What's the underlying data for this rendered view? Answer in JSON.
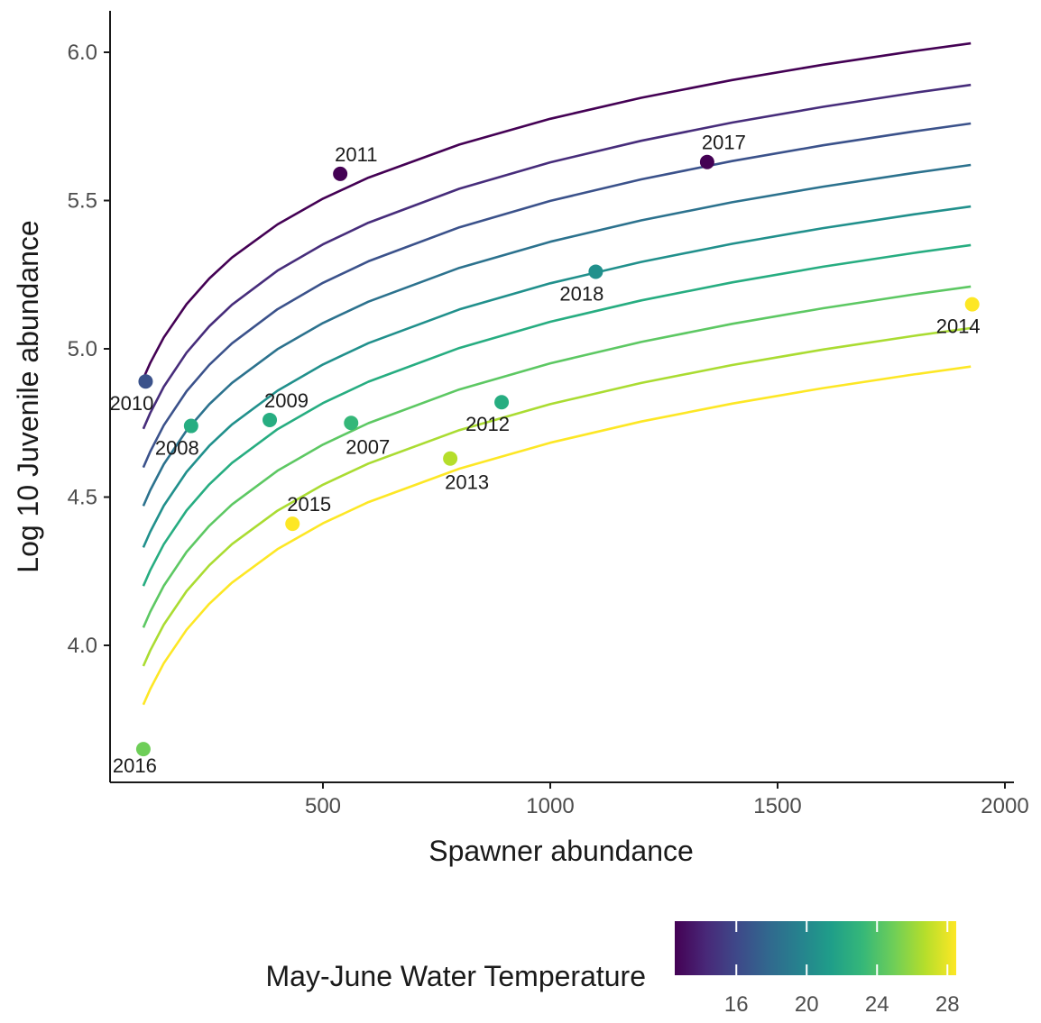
{
  "chart_data": {
    "type": "scatter",
    "title": "",
    "xlabel": "Spawner abundance",
    "ylabel": "Log 10 Juvenile abundance",
    "xlim": [
      20,
      2000
    ],
    "ylim": [
      3.55,
      6.15
    ],
    "x_ticks": [
      500,
      1000,
      1500,
      2000
    ],
    "y_ticks": [
      4.0,
      4.5,
      5.0,
      5.5,
      6.0
    ],
    "x_tick_labels": [
      "500",
      "1000",
      "1500",
      "2000"
    ],
    "y_tick_labels": [
      "4.0",
      "4.5",
      "5.0",
      "5.5",
      "6.0"
    ],
    "grid": false,
    "legend": {
      "title": "May-June Water Temperature",
      "placement": "bottom",
      "type": "colorbar",
      "range": [
        12.5,
        28.5
      ],
      "ticks": [
        16,
        20,
        24,
        28
      ],
      "tick_labels": [
        "16",
        "20",
        "24",
        "28"
      ],
      "colors": [
        "#440154",
        "#482878",
        "#3e4989",
        "#31688e",
        "#26828e",
        "#1f9e89",
        "#35b779",
        "#6ece58",
        "#b5de2b",
        "#fde725"
      ]
    },
    "curves": {
      "x": [
        105,
        120,
        150,
        200,
        250,
        300,
        400,
        500,
        600,
        800,
        1000,
        1200,
        1400,
        1600,
        1800,
        1925
      ],
      "series": [
        {
          "color": "#440154",
          "start_y": 4.9,
          "end_y": 6.03
        },
        {
          "color": "#472d7b",
          "start_y": 4.73,
          "end_y": 5.89
        },
        {
          "color": "#3b528b",
          "start_y": 4.6,
          "end_y": 5.76
        },
        {
          "color": "#2c728e",
          "start_y": 4.47,
          "end_y": 5.62
        },
        {
          "color": "#21908c",
          "start_y": 4.33,
          "end_y": 5.48
        },
        {
          "color": "#27ad81",
          "start_y": 4.2,
          "end_y": 5.35
        },
        {
          "color": "#5dc863",
          "start_y": 4.06,
          "end_y": 5.21
        },
        {
          "color": "#aadc32",
          "start_y": 3.93,
          "end_y": 5.07
        },
        {
          "color": "#fde725",
          "start_y": 3.8,
          "end_y": 4.94
        }
      ]
    },
    "points": [
      {
        "label": "2010",
        "x": 110,
        "y": 4.89,
        "color": "#3b528b",
        "label_pos": "below-left"
      },
      {
        "label": "2011",
        "x": 538,
        "y": 5.59,
        "color": "#440154",
        "label_pos": "above-right"
      },
      {
        "label": "2017",
        "x": 1345,
        "y": 5.63,
        "color": "#440154",
        "label_pos": "above-right"
      },
      {
        "label": "2018",
        "x": 1100,
        "y": 5.26,
        "color": "#21908c",
        "label_pos": "below-left"
      },
      {
        "label": "2014",
        "x": 1928,
        "y": 5.15,
        "color": "#fde725",
        "label_pos": "below-left"
      },
      {
        "label": "2008",
        "x": 210,
        "y": 4.74,
        "color": "#27ad81",
        "label_pos": "below-left"
      },
      {
        "label": "2009",
        "x": 383,
        "y": 4.76,
        "color": "#27ad81",
        "label_pos": "above-right"
      },
      {
        "label": "2007",
        "x": 562,
        "y": 4.75,
        "color": "#35b779",
        "label_pos": "below-right"
      },
      {
        "label": "2012",
        "x": 893,
        "y": 4.82,
        "color": "#27ad81",
        "label_pos": "below-left"
      },
      {
        "label": "2013",
        "x": 780,
        "y": 4.63,
        "color": "#b5de2b",
        "label_pos": "below-right"
      },
      {
        "label": "2015",
        "x": 433,
        "y": 4.41,
        "color": "#fde725",
        "label_pos": "above-right"
      },
      {
        "label": "2016",
        "x": 105,
        "y": 3.65,
        "color": "#6ece58",
        "label_pos": "below"
      }
    ]
  }
}
